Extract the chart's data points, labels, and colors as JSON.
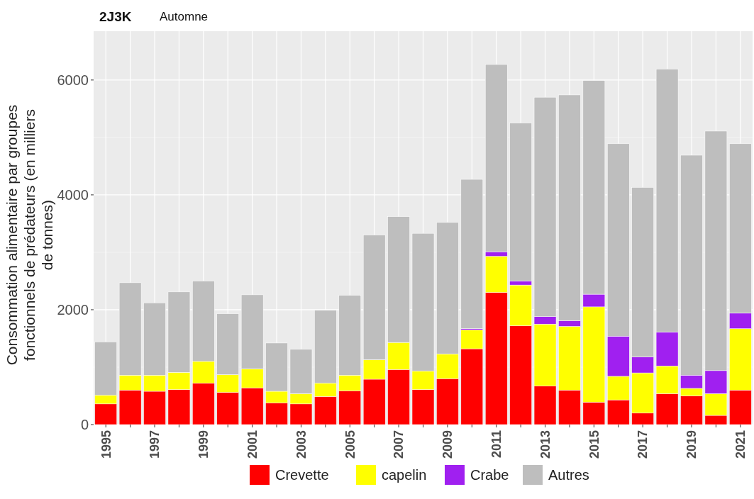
{
  "chart_data": {
    "type": "bar",
    "title": "2J3K",
    "subtitle": "Automne",
    "ylabel": "Consommation alimentaire par groupes fonctionnels de prédateurs (en milliers de tonnes)",
    "stacked": true,
    "grid": true,
    "legend": "bottom",
    "ylim": [
      0,
      6850
    ],
    "yticks": [
      0,
      2000,
      4000,
      6000
    ],
    "categories": [
      "1995",
      null,
      "1997",
      null,
      "1999",
      null,
      "2001",
      null,
      "2003",
      null,
      "2005",
      null,
      "2007",
      null,
      "2009",
      null,
      "2011",
      null,
      "2013",
      null,
      "2015",
      null,
      "2017",
      null,
      "2019",
      null,
      "2021"
    ],
    "series": [
      {
        "name": "Crevette",
        "color": "#ff0000",
        "values": [
          360,
          600,
          580,
          610,
          720,
          560,
          640,
          380,
          360,
          490,
          590,
          790,
          960,
          610,
          800,
          1320,
          2300,
          1720,
          670,
          600,
          390,
          430,
          200,
          540,
          500,
          160,
          600
        ]
      },
      {
        "name": "capelin",
        "color": "#ffff00",
        "values": [
          150,
          260,
          280,
          300,
          380,
          310,
          330,
          200,
          180,
          230,
          270,
          340,
          470,
          320,
          430,
          330,
          630,
          710,
          1080,
          1110,
          1660,
          410,
          700,
          480,
          130,
          380,
          1070
        ]
      },
      {
        "name": "Crabe",
        "color": "#a020f0",
        "values": [
          0,
          0,
          0,
          0,
          0,
          0,
          0,
          0,
          0,
          0,
          0,
          0,
          0,
          0,
          0,
          20,
          80,
          70,
          130,
          100,
          220,
          700,
          280,
          590,
          230,
          400,
          270
        ]
      },
      {
        "name": "Autres",
        "color": "#bebebe",
        "values": [
          930,
          1610,
          1260,
          1400,
          1400,
          1060,
          1290,
          840,
          770,
          1270,
          1390,
          2170,
          2190,
          2400,
          2290,
          2600,
          3260,
          2750,
          3820,
          3930,
          3720,
          3350,
          2950,
          4580,
          3830,
          4170,
          2950
        ]
      }
    ]
  }
}
